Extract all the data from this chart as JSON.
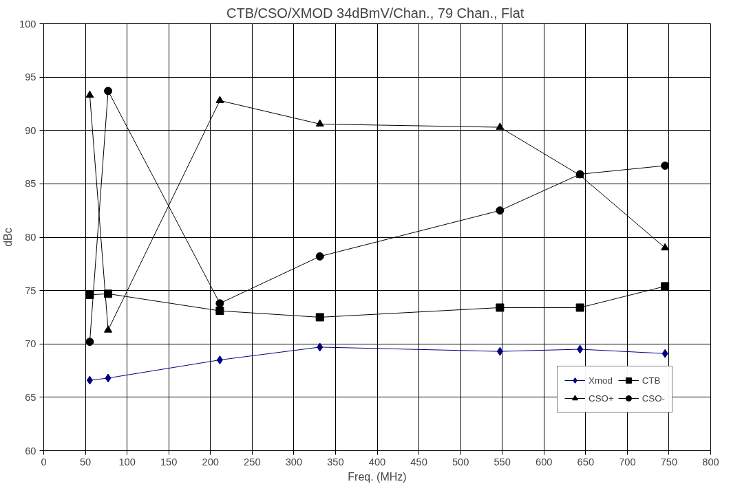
{
  "chart_data": {
    "type": "line",
    "title": "CTB/CSO/XMOD  34dBmV/Chan., 79 Chan., Flat",
    "xlabel": "Freq. (MHz)",
    "ylabel": "dBc",
    "x": [
      55.25,
      77.25,
      211.25,
      331.25,
      547.25,
      643.25,
      745.25
    ],
    "series": [
      {
        "name": "Xmod",
        "color": "#000080",
        "marker": "diamond",
        "values": [
          66.6,
          66.8,
          68.5,
          69.7,
          69.3,
          69.5,
          69.1
        ]
      },
      {
        "name": "CTB",
        "color": "#000000",
        "marker": "square",
        "values": [
          74.6,
          74.7,
          73.1,
          72.5,
          73.4,
          73.4,
          75.4
        ]
      },
      {
        "name": "CSO+",
        "color": "#000000",
        "marker": "triangle",
        "values": [
          93.3,
          71.3,
          92.8,
          90.6,
          90.3,
          85.8,
          79.0
        ]
      },
      {
        "name": "CSO-",
        "color": "#000000",
        "marker": "circle",
        "values": [
          70.2,
          93.7,
          73.8,
          78.2,
          82.5,
          85.9,
          86.7
        ]
      }
    ],
    "xlim": [
      0,
      800
    ],
    "xticks": [
      0,
      50,
      100,
      150,
      200,
      250,
      300,
      350,
      400,
      450,
      500,
      550,
      600,
      650,
      700,
      750,
      800
    ],
    "ylim": [
      60,
      100
    ],
    "yticks": [
      60,
      65,
      70,
      75,
      80,
      85,
      90,
      95,
      100
    ],
    "grid": true,
    "legend": "bottom right",
    "line_style": "solid"
  }
}
